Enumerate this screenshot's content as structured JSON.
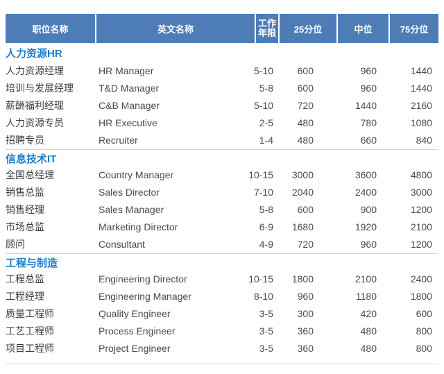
{
  "colors": {
    "header_bg": "#4e7cb7",
    "header_text": "#ffffff",
    "section_title_text": "#1b7ec9",
    "row_text": "#414141",
    "divider": "#d6d6d6"
  },
  "table": {
    "headers": [
      "职位名称",
      "英文名称",
      "工作年限",
      "25分位",
      "中位",
      "75分位"
    ],
    "sections": [
      {
        "title": "人力资源HR",
        "rows": [
          [
            "人力资源经理",
            "HR Manager",
            "5-10",
            "600",
            "960",
            "1440"
          ],
          [
            "培训与发展经理",
            "T&D Manager",
            "5-8",
            "600",
            "960",
            "1440"
          ],
          [
            "薪酬福利经理",
            "C&B Manager",
            "5-10",
            "720",
            "1440",
            "2160"
          ],
          [
            "人力资源专员",
            "HR Executive",
            "2-5",
            "480",
            "780",
            "1080"
          ],
          [
            "招聘专员",
            "Recruiter",
            "1-4",
            "480",
            "660",
            "840"
          ]
        ]
      },
      {
        "title": "信息技术IT",
        "rows": [
          [
            "全国总经理",
            "Country Manager",
            "10-15",
            "3000",
            "3600",
            "4800"
          ],
          [
            "销售总监",
            "Sales Director",
            "7-10",
            "2040",
            "2400",
            "3000"
          ],
          [
            "销售经理",
            "Sales Manager",
            "5-8",
            "600",
            "900",
            "1200"
          ],
          [
            "市场总监",
            "Marketing Director",
            "6-9",
            "1680",
            "1920",
            "2100"
          ],
          [
            "顾问",
            "Consultant",
            "4-9",
            "720",
            "960",
            "1200"
          ]
        ]
      },
      {
        "title": "工程与制造",
        "rows": [
          [
            "工程总监",
            "Engineering Director",
            "10-15",
            "1800",
            "2100",
            "2400"
          ],
          [
            "工程经理",
            "Engineering Manager",
            "8-10",
            "960",
            "1180",
            "1800"
          ],
          [
            "质量工程师",
            "Quality Engineer",
            "3-5",
            "300",
            "420",
            "600"
          ],
          [
            "工艺工程师",
            "Process Engineer",
            "3-5",
            "360",
            "480",
            "800"
          ],
          [
            "项目工程师",
            "Project Engineer",
            "3-5",
            "360",
            "480",
            "800"
          ]
        ]
      }
    ]
  }
}
